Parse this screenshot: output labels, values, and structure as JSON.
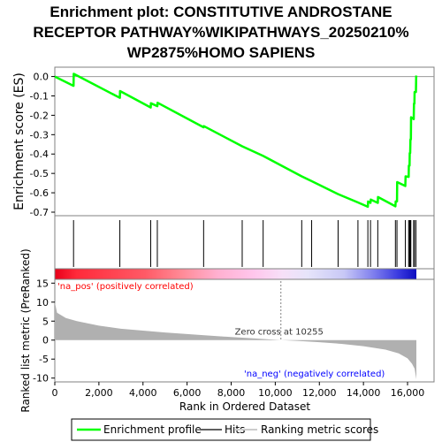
{
  "title_lines": [
    "Enrichment plot: CONSTITUTIVE ANDROSTANE",
    "RECEPTOR PATHWAY%WIKIPATHWAYS_20250210%",
    "WP2875%HOMO SAPIENS"
  ],
  "colors": {
    "es_line": "#00ff00",
    "hits": "#000000",
    "metric_fill": "#b0b0b0",
    "pos_label": "#ff0000",
    "neg_label": "#0000ff",
    "zero_line": "#808080"
  },
  "chart_data": {
    "type": "line",
    "x_max": 16400,
    "x_ticks": [
      0,
      2000,
      4000,
      6000,
      8000,
      10000,
      12000,
      14000,
      16000
    ],
    "x_tick_labels": [
      "0",
      "2,000",
      "4,000",
      "6,000",
      "8,000",
      "10,000",
      "12,000",
      "14,000",
      "16,000"
    ],
    "xlabel": "Rank in Ordered Dataset",
    "es_panel": {
      "ylabel": "Enrichment score (ES)",
      "ylim": [
        -0.7,
        0.03
      ],
      "y_ticks": [
        0.0,
        -0.1,
        -0.2,
        -0.3,
        -0.4,
        -0.5,
        -0.6,
        -0.7
      ],
      "y_tick_labels": [
        "0.0",
        "-0.1",
        "-0.2",
        "-0.3",
        "-0.4",
        "-0.5",
        "-0.6",
        "-0.7"
      ],
      "points": [
        [
          0,
          0.0
        ],
        [
          850,
          -0.048
        ],
        [
          860,
          0.014
        ],
        [
          2950,
          -0.11
        ],
        [
          2960,
          -0.075
        ],
        [
          4350,
          -0.16
        ],
        [
          4360,
          -0.138
        ],
        [
          4650,
          -0.153
        ],
        [
          4660,
          -0.135
        ],
        [
          6750,
          -0.262
        ],
        [
          6760,
          -0.256
        ],
        [
          8500,
          -0.36
        ],
        [
          9450,
          -0.41
        ],
        [
          11200,
          -0.515
        ],
        [
          11650,
          -0.54
        ],
        [
          12850,
          -0.607
        ],
        [
          13750,
          -0.65
        ],
        [
          14200,
          -0.672
        ],
        [
          14210,
          -0.645
        ],
        [
          14320,
          -0.652
        ],
        [
          14330,
          -0.635
        ],
        [
          14650,
          -0.652
        ],
        [
          14660,
          -0.622
        ],
        [
          15450,
          -0.67
        ],
        [
          15460,
          -0.645
        ],
        [
          15520,
          -0.645
        ],
        [
          15530,
          -0.545
        ],
        [
          15900,
          -0.565
        ],
        [
          15910,
          -0.515
        ],
        [
          16050,
          -0.518
        ],
        [
          16060,
          -0.46
        ],
        [
          16090,
          -0.46
        ],
        [
          16100,
          -0.395
        ],
        [
          16120,
          -0.395
        ],
        [
          16130,
          -0.325
        ],
        [
          16150,
          -0.325
        ],
        [
          16160,
          -0.21
        ],
        [
          16280,
          -0.22
        ],
        [
          16290,
          -0.14
        ],
        [
          16310,
          -0.14
        ],
        [
          16320,
          -0.08
        ],
        [
          16380,
          -0.08
        ],
        [
          16390,
          0.0
        ],
        [
          16400,
          0.005
        ]
      ]
    },
    "hits": [
      850,
      2950,
      4350,
      4650,
      6750,
      8500,
      9450,
      11200,
      11650,
      12850,
      13750,
      14200,
      14320,
      14650,
      15450,
      15520,
      15900,
      16050,
      16090,
      16120,
      16150,
      16280,
      16310,
      16380
    ],
    "metric_panel": {
      "ylabel": "Ranked list metric (PreRanked)",
      "ylim": [
        -11,
        16
      ],
      "y_ticks": [
        15,
        10,
        5,
        0,
        -5,
        -10
      ],
      "y_tick_labels": [
        "15",
        "10",
        "5",
        "0",
        "-5",
        "-10"
      ],
      "zero_cross": 10255,
      "curve": [
        [
          0,
          10.0
        ],
        [
          100,
          7.2
        ],
        [
          500,
          5.8
        ],
        [
          1000,
          5.0
        ],
        [
          2000,
          3.8
        ],
        [
          3000,
          3.0
        ],
        [
          4000,
          2.5
        ],
        [
          5000,
          2.0
        ],
        [
          6000,
          1.6
        ],
        [
          7000,
          1.2
        ],
        [
          8000,
          0.8
        ],
        [
          9000,
          0.45
        ],
        [
          10255,
          0.0
        ],
        [
          11000,
          -0.2
        ],
        [
          12000,
          -0.55
        ],
        [
          13000,
          -1.0
        ],
        [
          14000,
          -1.6
        ],
        [
          15000,
          -2.5
        ],
        [
          15600,
          -3.5
        ],
        [
          16000,
          -4.8
        ],
        [
          16200,
          -6.2
        ],
        [
          16320,
          -7.5
        ],
        [
          16400,
          -10.3
        ]
      ]
    },
    "annotations": {
      "pos": "'na_pos' (positively correlated)",
      "neg": "'na_neg' (negatively correlated)",
      "zero": "Zero cross at 10255"
    },
    "legend": [
      "Enrichment profile",
      "Hits",
      "Ranking metric scores"
    ]
  }
}
